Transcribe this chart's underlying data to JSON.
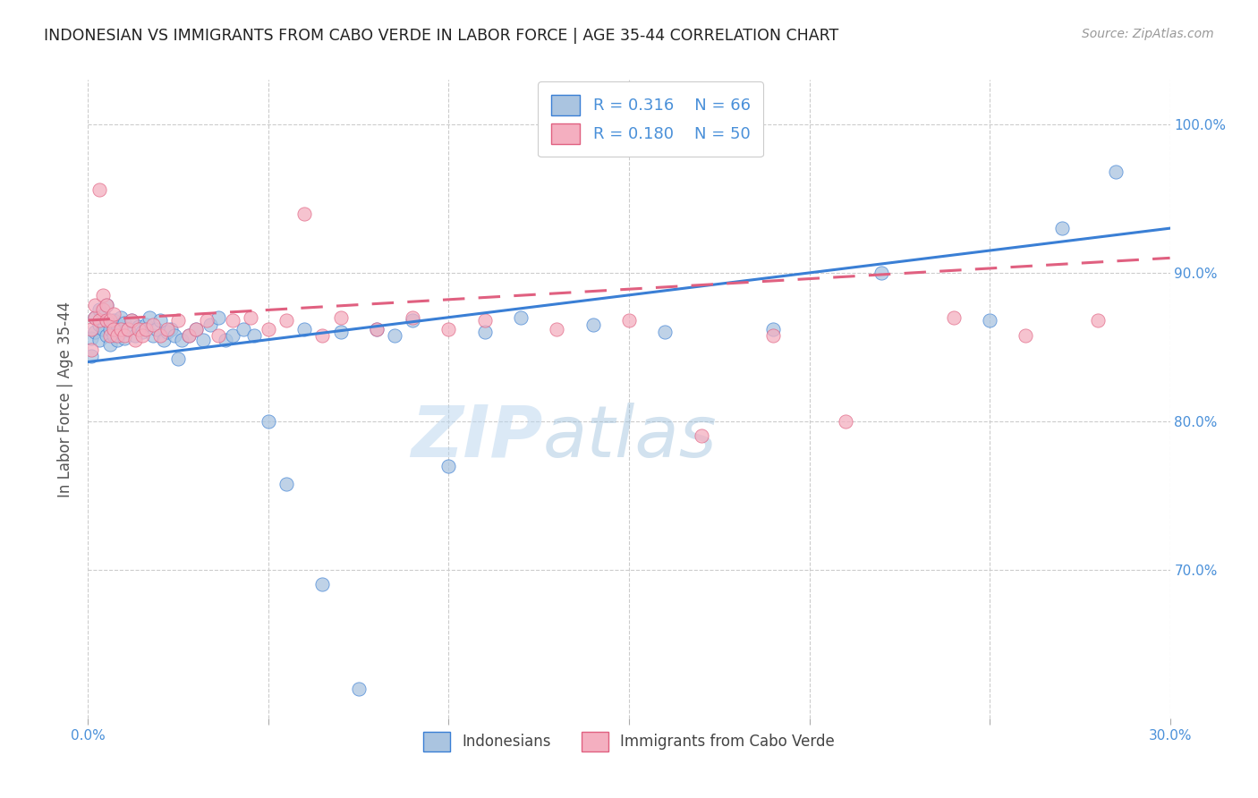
{
  "title": "INDONESIAN VS IMMIGRANTS FROM CABO VERDE IN LABOR FORCE | AGE 35-44 CORRELATION CHART",
  "source": "Source: ZipAtlas.com",
  "ylabel": "In Labor Force | Age 35-44",
  "x_min": 0.0,
  "x_max": 0.3,
  "y_min": 0.6,
  "y_max": 1.03,
  "x_ticks": [
    0.0,
    0.05,
    0.1,
    0.15,
    0.2,
    0.25,
    0.3
  ],
  "y_ticks": [
    0.7,
    0.8,
    0.9,
    1.0
  ],
  "blue_R": 0.316,
  "blue_N": 66,
  "pink_R": 0.18,
  "pink_N": 50,
  "blue_color": "#aac4e0",
  "pink_color": "#f4afc0",
  "blue_line_color": "#3a7fd5",
  "pink_line_color": "#e06080",
  "watermark_zip": "ZIP",
  "watermark_atlas": "atlas",
  "legend_label_blue": "Indonesians",
  "legend_label_pink": "Immigrants from Cabo Verde",
  "blue_scatter_x": [
    0.001,
    0.001,
    0.002,
    0.002,
    0.003,
    0.003,
    0.003,
    0.004,
    0.004,
    0.005,
    0.005,
    0.005,
    0.006,
    0.006,
    0.007,
    0.007,
    0.008,
    0.008,
    0.009,
    0.009,
    0.01,
    0.01,
    0.011,
    0.012,
    0.013,
    0.014,
    0.015,
    0.016,
    0.017,
    0.018,
    0.019,
    0.02,
    0.021,
    0.022,
    0.023,
    0.024,
    0.025,
    0.026,
    0.028,
    0.03,
    0.032,
    0.034,
    0.036,
    0.038,
    0.04,
    0.043,
    0.046,
    0.05,
    0.055,
    0.06,
    0.065,
    0.07,
    0.075,
    0.08,
    0.085,
    0.09,
    0.1,
    0.11,
    0.12,
    0.14,
    0.16,
    0.19,
    0.22,
    0.25,
    0.27,
    0.285
  ],
  "blue_scatter_y": [
    0.844,
    0.856,
    0.86,
    0.87,
    0.855,
    0.865,
    0.875,
    0.862,
    0.872,
    0.858,
    0.868,
    0.878,
    0.852,
    0.862,
    0.858,
    0.868,
    0.855,
    0.865,
    0.86,
    0.87,
    0.856,
    0.866,
    0.862,
    0.868,
    0.858,
    0.864,
    0.86,
    0.865,
    0.87,
    0.858,
    0.862,
    0.868,
    0.855,
    0.86,
    0.862,
    0.858,
    0.842,
    0.855,
    0.858,
    0.862,
    0.855,
    0.865,
    0.87,
    0.855,
    0.858,
    0.862,
    0.858,
    0.8,
    0.758,
    0.862,
    0.69,
    0.86,
    0.62,
    0.862,
    0.858,
    0.868,
    0.77,
    0.86,
    0.87,
    0.865,
    0.86,
    0.862,
    0.9,
    0.868,
    0.93,
    0.968
  ],
  "pink_scatter_x": [
    0.001,
    0.001,
    0.002,
    0.002,
    0.003,
    0.003,
    0.004,
    0.004,
    0.005,
    0.005,
    0.006,
    0.006,
    0.007,
    0.007,
    0.008,
    0.009,
    0.01,
    0.011,
    0.012,
    0.013,
    0.014,
    0.015,
    0.016,
    0.018,
    0.02,
    0.022,
    0.025,
    0.028,
    0.03,
    0.033,
    0.036,
    0.04,
    0.045,
    0.05,
    0.055,
    0.06,
    0.065,
    0.07,
    0.08,
    0.09,
    0.1,
    0.11,
    0.13,
    0.15,
    0.17,
    0.19,
    0.21,
    0.24,
    0.26,
    0.28
  ],
  "pink_scatter_y": [
    0.848,
    0.862,
    0.87,
    0.878,
    0.956,
    0.868,
    0.875,
    0.885,
    0.868,
    0.878,
    0.858,
    0.868,
    0.862,
    0.872,
    0.858,
    0.862,
    0.858,
    0.862,
    0.868,
    0.855,
    0.862,
    0.858,
    0.862,
    0.865,
    0.858,
    0.862,
    0.868,
    0.858,
    0.862,
    0.868,
    0.858,
    0.868,
    0.87,
    0.862,
    0.868,
    0.94,
    0.858,
    0.87,
    0.862,
    0.87,
    0.862,
    0.868,
    0.862,
    0.868,
    0.79,
    0.858,
    0.8,
    0.87,
    0.858,
    0.868
  ],
  "blue_trend_x0": 0.0,
  "blue_trend_y0": 0.84,
  "blue_trend_x1": 0.3,
  "blue_trend_y1": 0.93,
  "pink_trend_x0": 0.0,
  "pink_trend_y0": 0.868,
  "pink_trend_x1": 0.3,
  "pink_trend_y1": 0.91
}
